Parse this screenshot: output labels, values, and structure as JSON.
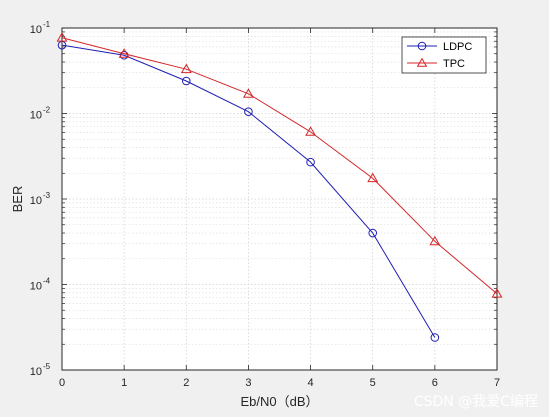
{
  "chart_data": {
    "type": "line",
    "title": "",
    "xlabel": "Eb/N0（dB）",
    "ylabel": "BER",
    "xlim": [
      0,
      7
    ],
    "ylim": [
      1e-05,
      0.1
    ],
    "y_scale": "log",
    "x_ticks": [
      "0",
      "1",
      "2",
      "3",
      "4",
      "5",
      "6",
      "7"
    ],
    "y_ticks": [
      {
        "base": "10",
        "exp": "-5",
        "value": 1e-05
      },
      {
        "base": "10",
        "exp": "-4",
        "value": 0.0001
      },
      {
        "base": "10",
        "exp": "-3",
        "value": 0.001
      },
      {
        "base": "10",
        "exp": "-2",
        "value": 0.01
      },
      {
        "base": "10",
        "exp": "-1",
        "value": 0.1
      }
    ],
    "grid": true,
    "minor_grid": true,
    "legend_position": "top-right",
    "series": [
      {
        "name": "LDPC",
        "color": "#1f1fb4",
        "marker": "circle",
        "x": [
          0,
          1,
          2,
          3,
          4,
          5,
          6
        ],
        "y": [
          0.063,
          0.048,
          0.024,
          0.0105,
          0.0027,
          0.0004,
          2.4e-05
        ]
      },
      {
        "name": "TPC",
        "color": "#d62728",
        "marker": "triangle",
        "x": [
          0,
          1,
          2,
          3,
          4,
          5,
          6,
          7
        ],
        "y": [
          0.077,
          0.05,
          0.033,
          0.017,
          0.0061,
          0.00175,
          0.00032,
          7.8e-05
        ]
      }
    ]
  },
  "watermark": {
    "text": "CSDN @我爱C编程"
  }
}
